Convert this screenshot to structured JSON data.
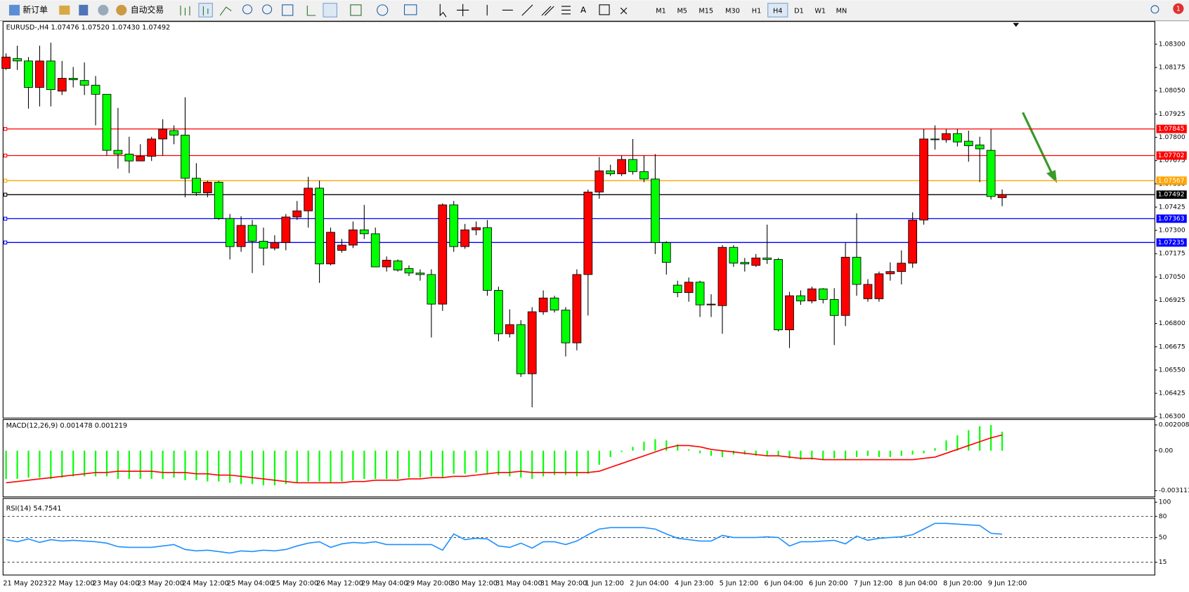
{
  "toolbar": {
    "new_order": "新订单",
    "auto_trading": "自动交易",
    "timeframes": [
      "M1",
      "M5",
      "M15",
      "M30",
      "H1",
      "H4",
      "D1",
      "W1",
      "MN"
    ],
    "active_timeframe": "H4",
    "notifications": "1"
  },
  "chart_data": [
    {
      "type": "candlestick",
      "title": "EURUSD-,H4 1.07476 1.07520 1.07430 1.07492",
      "categories": [
        "21 May 2023",
        null,
        null,
        null,
        "22 May 12:00",
        null,
        null,
        null,
        "23 May 04:00",
        null,
        null,
        null,
        "23 May 20:00",
        null,
        null,
        null,
        "24 May 12:00",
        null,
        null,
        null,
        "25 May 04:00",
        null,
        null,
        null,
        "25 May 20:00",
        null,
        null,
        null,
        "26 May 12:00",
        null,
        null,
        null,
        "29 May 04:00",
        null,
        null,
        null,
        "29 May 20:00",
        null,
        null,
        null,
        "30 May 12:00",
        null,
        null,
        null,
        "31 May 04:00",
        null,
        null,
        null,
        "31 May 20:00",
        null,
        null,
        null,
        "1 Jun 12:00",
        null,
        null,
        null,
        "2 Jun 04:00",
        null,
        null,
        null,
        "4 Jun 23:00",
        null,
        null,
        null,
        "5 Jun 12:00",
        null,
        null,
        null,
        "6 Jun 04:00",
        null,
        null,
        null,
        "6 Jun 20:00",
        null,
        null,
        null,
        "7 Jun 12:00",
        null,
        null,
        null,
        "8 Jun 04:00",
        null,
        null,
        null,
        "8 Jun 20:00",
        null,
        null,
        null,
        "9 Jun 12:00",
        null
      ],
      "open": [
        1.0817,
        1.08223,
        1.0821,
        1.08068,
        1.0821,
        1.08048,
        1.08117,
        1.08105,
        1.0808,
        1.08031,
        1.0773,
        1.0771,
        1.07673,
        1.07698,
        1.07791,
        1.07836,
        1.07812,
        1.0758,
        1.07502,
        1.07559,
        1.07364,
        1.07213,
        1.07327,
        1.07242,
        1.07205,
        1.07234,
        1.07372,
        1.07405,
        1.07527,
        1.0712,
        1.07193,
        1.07221,
        1.07303,
        1.07282,
        1.07104,
        1.07136,
        1.07095,
        1.07071,
        1.07063,
        1.06904,
        1.07437,
        1.07213,
        1.07303,
        1.07315,
        1.06978,
        1.06745,
        1.06794,
        1.0653,
        1.06863,
        1.06937,
        1.06872,
        1.06696,
        1.07063,
        1.07506,
        1.0762,
        1.07604,
        1.07681,
        1.07616,
        1.07576,
        1.07234,
        1.07006,
        1.06966,
        1.07022,
        1.069,
        1.06896,
        1.07209,
        1.07128,
        1.07112,
        1.07152,
        1.07144,
        1.06766,
        1.06949,
        1.06921,
        1.06986,
        1.06929,
        1.06843,
        1.07156,
        1.06933,
        1.06933,
        1.07067,
        1.07079,
        1.07124,
        1.07356,
        1.07791,
        1.07787,
        1.0782,
        1.07779,
        1.07759,
        1.0773,
        1.07476
      ],
      "high": [
        1.08251,
        1.08292,
        1.08231,
        1.08292,
        1.08308,
        1.0821,
        1.08178,
        1.08202,
        1.08129,
        1.08031,
        1.07958,
        1.07803,
        1.07763,
        1.07803,
        1.07897,
        1.07864,
        1.08015,
        1.07661,
        1.07567,
        1.07567,
        1.07388,
        1.07376,
        1.07356,
        1.07315,
        1.07274,
        1.07388,
        1.07458,
        1.07588,
        1.07567,
        1.07315,
        1.07254,
        1.07348,
        1.07437,
        1.07315,
        1.0716,
        1.07144,
        1.07112,
        1.07091,
        1.07091,
        1.07445,
        1.07458,
        1.07335,
        1.07348,
        1.07356,
        1.06998,
        1.06876,
        1.06818,
        1.06888,
        1.06978,
        1.06949,
        1.06888,
        1.07091,
        1.07519,
        1.07694,
        1.07653,
        1.07702,
        1.07791,
        1.07702,
        1.0771,
        1.07242,
        1.0703,
        1.07047,
        1.0703,
        1.06957,
        1.07221,
        1.07221,
        1.07152,
        1.07173,
        1.07331,
        1.07152,
        1.0697,
        1.06978,
        1.06998,
        1.0699,
        1.0699,
        1.07234,
        1.07392,
        1.07038,
        1.07079,
        1.07128,
        1.07193,
        1.07397,
        1.07844,
        1.07864,
        1.07844,
        1.07844,
        1.07836,
        1.07803,
        1.07844,
        1.0752
      ],
      "low": [
        1.08162,
        1.08162,
        1.07954,
        1.07966,
        1.07966,
        1.08027,
        1.08068,
        1.08027,
        1.07864,
        1.07702,
        1.07632,
        1.07608,
        1.07673,
        1.07673,
        1.07702,
        1.07763,
        1.07478,
        1.07486,
        1.07478,
        1.07356,
        1.07144,
        1.07185,
        1.07071,
        1.07112,
        1.07193,
        1.07193,
        1.07356,
        1.07315,
        1.07018,
        1.07112,
        1.07181,
        1.07205,
        1.07254,
        1.07104,
        1.07079,
        1.07079,
        1.07055,
        1.0703,
        1.06725,
        1.06868,
        1.07185,
        1.07201,
        1.07274,
        1.06949,
        1.06704,
        1.06725,
        1.06513,
        1.0635,
        1.06847,
        1.06859,
        1.06623,
        1.06656,
        1.06843,
        1.0747,
        1.07592,
        1.07592,
        1.076,
        1.07559,
        1.07173,
        1.07063,
        1.06941,
        1.06917,
        1.06835,
        1.06835,
        1.06745,
        1.07104,
        1.07079,
        1.07104,
        1.0712,
        1.06757,
        1.06668,
        1.069,
        1.06908,
        1.06908,
        1.06684,
        1.06786,
        1.06949,
        1.06917,
        1.06917,
        1.0703,
        1.0701,
        1.07099,
        1.07331,
        1.07734,
        1.07771,
        1.07751,
        1.07669,
        1.07559,
        1.07466,
        1.0743
      ],
      "close": [
        1.08231,
        1.0821,
        1.08068,
        1.0821,
        1.08056,
        1.08117,
        1.08109,
        1.0808,
        1.08031,
        1.0773,
        1.0771,
        1.07673,
        1.07698,
        1.07791,
        1.07844,
        1.07812,
        1.0758,
        1.07502,
        1.07559,
        1.07364,
        1.07213,
        1.07327,
        1.07242,
        1.07205,
        1.07234,
        1.07372,
        1.07405,
        1.07527,
        1.0712,
        1.0729,
        1.07221,
        1.07303,
        1.07282,
        1.07104,
        1.0714,
        1.07087,
        1.07071,
        1.07063,
        1.06904,
        1.07437,
        1.07213,
        1.07303,
        1.07315,
        1.06978,
        1.06745,
        1.06794,
        1.0653,
        1.06863,
        1.06937,
        1.06872,
        1.06696,
        1.07063,
        1.07506,
        1.0762,
        1.07604,
        1.07681,
        1.07616,
        1.07576,
        1.07234,
        1.07128,
        1.06966,
        1.07022,
        1.069,
        1.06904,
        1.07209,
        1.07124,
        1.0712,
        1.07152,
        1.07144,
        1.06766,
        1.06949,
        1.06921,
        1.06986,
        1.06929,
        1.06843,
        1.07156,
        1.0701,
        1.0701,
        1.07067,
        1.07079,
        1.07124,
        1.07356,
        1.07791,
        1.07787,
        1.0782,
        1.07775,
        1.07755,
        1.07738,
        1.07482,
        1.07492
      ],
      "up_color": "#ff0000",
      "down_color": "#00ff00",
      "ylim": [
        1.06292,
        1.08422
      ],
      "yticks": [
        {
          "value": 1.083,
          "label": "1.08300"
        },
        {
          "value": 1.08175,
          "label": "1.08175"
        },
        {
          "value": 1.0805,
          "label": "1.08050"
        },
        {
          "value": 1.07925,
          "label": "1.07925"
        },
        {
          "value": 1.078,
          "label": "1.07800"
        },
        {
          "value": 1.07675,
          "label": "1.07675"
        },
        {
          "value": 1.0755,
          "label": "1.07550"
        },
        {
          "value": 1.07425,
          "label": "1.07425"
        },
        {
          "value": 1.073,
          "label": "1.07300"
        },
        {
          "value": 1.07175,
          "label": "1.07175"
        },
        {
          "value": 1.0705,
          "label": "1.07050"
        },
        {
          "value": 1.06925,
          "label": "1.06925"
        },
        {
          "value": 1.068,
          "label": "1.06800"
        },
        {
          "value": 1.06675,
          "label": "1.06675"
        },
        {
          "value": 1.0655,
          "label": "1.06550"
        },
        {
          "value": 1.06425,
          "label": "1.06425"
        },
        {
          "value": 1.063,
          "label": "1.06300"
        }
      ],
      "levels": [
        {
          "value": 1.07845,
          "color": "#ff0000"
        },
        {
          "value": 1.07702,
          "color": "#ff0000"
        },
        {
          "value": 1.07567,
          "color": "#ffa500"
        },
        {
          "value": 1.07492,
          "color": "#000000"
        },
        {
          "value": 1.07363,
          "color": "#0000ff"
        },
        {
          "value": 1.07235,
          "color": "#0000ff"
        }
      ]
    },
    {
      "type": "macd",
      "title": "MACD(12,26,9) 0.001478 0.001219",
      "series": [
        {
          "color": "#00ff00",
          "values": [
            -0.0022,
            -0.0022,
            -0.0021,
            -0.0021,
            -0.0022,
            -0.0021,
            -0.002,
            -0.002,
            -0.002,
            -0.002,
            -0.0022,
            -0.0022,
            -0.0022,
            -0.0022,
            -0.0022,
            -0.0021,
            -0.0023,
            -0.0023,
            -0.0024,
            -0.0024,
            -0.0025,
            -0.0026,
            -0.0026,
            -0.0027,
            -0.0027,
            -0.0026,
            -0.0025,
            -0.0024,
            -0.0024,
            -0.0025,
            -0.0024,
            -0.0023,
            -0.0022,
            -0.0022,
            -0.0022,
            -0.0022,
            -0.0021,
            -0.0021,
            -0.002,
            -0.0021,
            -0.0018,
            -0.0018,
            -0.0017,
            -0.0018,
            -0.0019,
            -0.002,
            -0.0021,
            -0.0022,
            -0.002,
            -0.0019,
            -0.0019,
            -0.002,
            -0.0018,
            -0.0011,
            -0.0005,
            -0.0001,
            0.0003,
            0.0007,
            0.0009,
            0.0008,
            0.0005,
            0.0001,
            -0.0002,
            -0.0004,
            -0.0005,
            -0.0003,
            -0.0003,
            -0.0004,
            -0.0004,
            -0.0004,
            -0.0006,
            -0.0007,
            -0.0007,
            -0.0007,
            -0.0006,
            -0.0007,
            -0.0005,
            -0.0004,
            -0.0005,
            -0.0005,
            -0.0004,
            -0.0003,
            -0.0002,
            0.0002,
            0.0008,
            0.0012,
            0.0016,
            0.0019,
            0.002,
            0.001478
          ]
        },
        {
          "color": "#ff0000",
          "values": [
            -0.0025,
            -0.0024,
            -0.0023,
            -0.0022,
            -0.0021,
            -0.002,
            -0.0019,
            -0.0018,
            -0.0017,
            -0.0017,
            -0.0016,
            -0.0016,
            -0.0016,
            -0.0016,
            -0.0017,
            -0.0017,
            -0.0017,
            -0.0018,
            -0.0018,
            -0.0019,
            -0.0019,
            -0.002,
            -0.0021,
            -0.0022,
            -0.0023,
            -0.0024,
            -0.0025,
            -0.0025,
            -0.0025,
            -0.0025,
            -0.0025,
            -0.0024,
            -0.0024,
            -0.0023,
            -0.0023,
            -0.0023,
            -0.0022,
            -0.0022,
            -0.0021,
            -0.0021,
            -0.002,
            -0.002,
            -0.0019,
            -0.0018,
            -0.0017,
            -0.0017,
            -0.0016,
            -0.0017,
            -0.0017,
            -0.0017,
            -0.0017,
            -0.0017,
            -0.0017,
            -0.0016,
            -0.0013,
            -0.001,
            -0.0007,
            -0.0004,
            -0.0001,
            0.0002,
            0.0004,
            0.0004,
            0.0003,
            0.0001,
            0,
            -0.0001,
            -0.0002,
            -0.0003,
            -0.0004,
            -0.0004,
            -0.0005,
            -0.0006,
            -0.0006,
            -0.0007,
            -0.0007,
            -0.0007,
            -0.0007,
            -0.0007,
            -0.0007,
            -0.0007,
            -0.0007,
            -0.0007,
            -0.0006,
            -0.0005,
            -0.0002,
            0.0001,
            0.0004,
            0.0007,
            0.001,
            0.001219
          ]
        }
      ],
      "ylim": [
        -0.003603,
        0.002421
      ],
      "yticks": [
        0.002008,
        {
          "value": 0,
          "label": "0.00"
        },
        -0.003111
      ]
    },
    {
      "type": "line",
      "title": "RSI(14) 54.7541",
      "color": "#1e90ff",
      "values": [
        47,
        44,
        48,
        43,
        47,
        45,
        46,
        45,
        44,
        42,
        37,
        36,
        36,
        36,
        38,
        40,
        33,
        31,
        32,
        30,
        28,
        31,
        30,
        32,
        31,
        33,
        38,
        42,
        44,
        36,
        41,
        43,
        42,
        44,
        40,
        40,
        40,
        40,
        40,
        32,
        55,
        47,
        49,
        48,
        38,
        36,
        42,
        35,
        44,
        44,
        40,
        45,
        54,
        62,
        64,
        64,
        64,
        64,
        62,
        55,
        49,
        47,
        45,
        45,
        53,
        50,
        50,
        50,
        51,
        50,
        38,
        44,
        44,
        45,
        46,
        41,
        52,
        46,
        49,
        50,
        51,
        54,
        62,
        70,
        70,
        69,
        68,
        67,
        56,
        54.7541
      ],
      "ylim": [
        0,
        100
      ],
      "yticks": [
        100,
        80,
        50,
        15
      ]
    }
  ]
}
